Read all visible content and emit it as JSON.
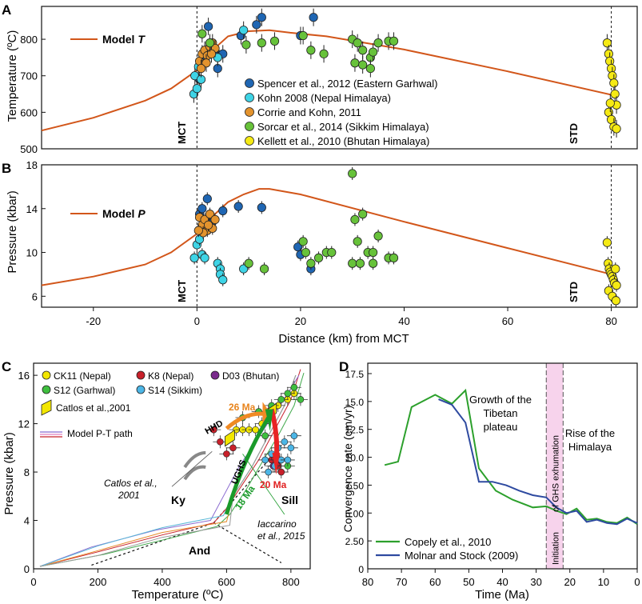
{
  "figure": {
    "panels": {
      "A": {
        "label": "A",
        "ylabel": "Temperature (ºC)",
        "model_label": "Model ",
        "model_label_var": "T",
        "left_marker": "MCT",
        "right_marker": "STD",
        "yticks": [
          "500",
          "600",
          "700",
          "800"
        ]
      },
      "B": {
        "label": "B",
        "ylabel": "Pressure (kbar)",
        "model_label": "Model ",
        "model_label_var": "P",
        "left_marker": "MCT",
        "right_marker": "STD",
        "yticks": [
          "6",
          "10",
          "14",
          "18"
        ],
        "xticks": [
          "-20",
          "0",
          "20",
          "40",
          "60",
          "80"
        ],
        "xlabel": "Distance (km) from MCT"
      },
      "C": {
        "label": "C",
        "ylabel": "Pressure (kbar)",
        "xlabel": "Temperature (ºC)",
        "xticks": [
          "0",
          "200",
          "400",
          "600",
          "800"
        ],
        "yticks": [
          "0",
          "4",
          "8",
          "12",
          "16"
        ],
        "legend": [
          {
            "label": "CK11 (Nepal)",
            "color": "#f2e600"
          },
          {
            "label": "K8 (Nepal)",
            "color": "#c8202a"
          },
          {
            "label": "D03 (Bhutan)",
            "color": "#7a2a8c"
          },
          {
            "label": "S12 (Garhwal)",
            "color": "#3fbf3f"
          },
          {
            "label": "S14 (Sikkim)",
            "color": "#4cb6e6"
          },
          {
            "label": "Catlos et al.,2001",
            "color": "#f2e600"
          },
          {
            "label": "Model P-T path",
            "color": "#c8202a"
          }
        ],
        "annotations": {
          "hhd": "HHD",
          "hhd_age": "26 Ma",
          "ughs": "UGHS",
          "ughs_age": "20 Ma",
          "green_age": "18 Ma",
          "catlos": "Catlos et al.,",
          "catlos_year": "2001",
          "iaccarino": "Iaccarino",
          "iaccarino_year": "et al., 2015",
          "ky": "Ky",
          "sill": "Sill",
          "and": "And"
        }
      },
      "D": {
        "label": "D",
        "ylabel": "Convergence rate (cm/yr)",
        "xlabel": "Time (Ma)",
        "xticks": [
          "80",
          "70",
          "60",
          "50",
          "40",
          "30",
          "20",
          "10",
          "0"
        ],
        "yticks": [
          "0",
          "2.50",
          "5.00",
          "7.50",
          "10.0",
          "12.5",
          "15.0",
          "17.5"
        ],
        "growth_text": [
          "Growth of the",
          "Tibetan",
          "plateau"
        ],
        "rise_text": [
          "Rise of the",
          "Himalaya"
        ],
        "band_text": [
          "Initiation",
          "of GHS exhumation"
        ],
        "legend": [
          {
            "label": "Copely et al., 2010",
            "color": "#2ca02c"
          },
          {
            "label": "Molnar and Stock (2009)",
            "color": "#2e4aa0"
          }
        ]
      }
    }
  },
  "chart_data": [
    {
      "panel": "A",
      "type": "scatter",
      "title": "",
      "xlabel": "",
      "ylabel": "Temperature (ºC)",
      "xlim": [
        -30,
        85
      ],
      "ylim": [
        500,
        890
      ],
      "model_curve": {
        "name": "Model T",
        "color": "#d2561a",
        "x": [
          -30,
          -20,
          -10,
          -5,
          0,
          3,
          6,
          10,
          14,
          18,
          25,
          40,
          60,
          80
        ],
        "y": [
          550,
          585,
          632,
          665,
          715,
          770,
          808,
          822,
          825,
          818,
          808,
          772,
          712,
          648
        ]
      },
      "series": [
        {
          "name": "Spencer et al., 2012 (Eastern Garhwal)",
          "color": "#1f66b3",
          "x": [
            0.5,
            1.2,
            2.2,
            3.5,
            5,
            8.5,
            11.5,
            12.5,
            20,
            22.5,
            4
          ],
          "y": [
            690,
            745,
            835,
            770,
            760,
            810,
            840,
            860,
            810,
            860,
            720
          ]
        },
        {
          "name": "Kohn 2008 (Nepal Himalaya)",
          "color": "#3ed4e6",
          "x": [
            -0.6,
            -0.4,
            0,
            0.3,
            0.8,
            4,
            9
          ],
          "y": [
            650,
            700,
            665,
            725,
            690,
            750,
            825
          ]
        },
        {
          "name": "Corrie and Kohn, 2011",
          "color": "#e3932d",
          "x": [
            0.5,
            1,
            1.5,
            2,
            2.5,
            3,
            3.5,
            1.8,
            2.8,
            0.8
          ],
          "y": [
            740,
            760,
            770,
            755,
            780,
            790,
            775,
            735,
            760,
            720
          ]
        },
        {
          "name": "Sorcar et al., 2014 (Sikkim Himalaya)",
          "color": "#67c23a",
          "x": [
            1,
            2.5,
            9.5,
            12.5,
            15,
            20.5,
            22,
            24.5,
            30,
            31,
            32,
            33.5,
            34,
            35,
            37,
            38,
            30.5,
            32,
            33.5
          ],
          "y": [
            815,
            790,
            785,
            790,
            795,
            810,
            770,
            760,
            800,
            790,
            770,
            750,
            765,
            790,
            795,
            795,
            735,
            730,
            720
          ]
        },
        {
          "name": "Kellett et al., 2010 (Bhutan Himalaya)",
          "color": "#f5ea14",
          "x": [
            79.2,
            79.5,
            79.7,
            80,
            80.2,
            80.5,
            80.7,
            81,
            79.5,
            80,
            80.5,
            81,
            79.8
          ],
          "y": [
            790,
            760,
            740,
            720,
            700,
            680,
            650,
            620,
            600,
            580,
            560,
            555,
            625
          ]
        }
      ]
    },
    {
      "panel": "B",
      "type": "scatter",
      "title": "",
      "xlabel": "Distance (km) from MCT",
      "ylabel": "Pressure (kbar)",
      "xlim": [
        -30,
        85
      ],
      "ylim": [
        5,
        18
      ],
      "model_curve": {
        "name": "Model P",
        "color": "#d2561a",
        "x": [
          -30,
          -20,
          -10,
          -5,
          0,
          3,
          6,
          9,
          12,
          14,
          20,
          40,
          60,
          80
        ],
        "y": [
          7,
          7.8,
          8.9,
          10,
          11.7,
          13.3,
          14.6,
          15.3,
          15.8,
          15.8,
          15.3,
          12.8,
          10.4,
          8
        ]
      },
      "series": [
        {
          "name": "Spencer et al., 2012 (Eastern Garhwal)",
          "color": "#1f66b3",
          "x": [
            0.5,
            1,
            2,
            3,
            5,
            8,
            12.5,
            19.5,
            20,
            22,
            1.5
          ],
          "y": [
            13.5,
            14,
            14.9,
            12.8,
            13.8,
            14.2,
            14.1,
            10.5,
            9.8,
            8.5,
            12
          ]
        },
        {
          "name": "Kohn 2008 (Nepal Himalaya)",
          "color": "#3ed4e6",
          "x": [
            -0.5,
            0,
            0.5,
            1,
            1.5,
            4,
            4.5,
            4.5,
            5,
            9
          ],
          "y": [
            9.5,
            10.7,
            11.2,
            9.8,
            9.5,
            9,
            8.5,
            8,
            7.5,
            8.5
          ]
        },
        {
          "name": "Corrie and Kohn, 2011",
          "color": "#e3932d",
          "x": [
            0.5,
            1,
            1.5,
            2,
            2.5,
            3,
            3.5,
            1.2,
            2.2,
            0.3
          ],
          "y": [
            13.2,
            12.5,
            13,
            12,
            13.5,
            12.2,
            13,
            11.8,
            12.5,
            12
          ]
        },
        {
          "name": "Sorcar et al., 2014 (Sikkim Himalaya)",
          "color": "#67c23a",
          "x": [
            10,
            13,
            20.5,
            21,
            22,
            23.5,
            25,
            26,
            30,
            30.5,
            31,
            32,
            33,
            34,
            35,
            37,
            38,
            30,
            31.5,
            34
          ],
          "y": [
            9,
            8.5,
            11,
            10,
            9,
            9.5,
            10,
            10,
            17.2,
            13,
            11,
            13.5,
            10,
            10,
            11.5,
            9.5,
            9.5,
            9,
            9,
            9
          ]
        },
        {
          "name": "Kellett et al., 2010 (Bhutan Himalaya)",
          "color": "#f5ea14",
          "x": [
            79.2,
            79.4,
            79.6,
            79.8,
            80,
            80.2,
            80.4,
            80.6,
            80.8,
            81,
            79.5,
            80.2,
            80.9
          ],
          "y": [
            10.9,
            9,
            8.5,
            8.2,
            8,
            7.8,
            7.5,
            7.2,
            8.5,
            7,
            6.5,
            6,
            5.6
          ]
        }
      ]
    },
    {
      "panel": "C",
      "type": "scatter",
      "title": "",
      "xlabel": "Temperature (ºC)",
      "ylabel": "Pressure (kbar)",
      "xlim": [
        0,
        860
      ],
      "ylim": [
        0,
        17
      ],
      "series": [
        {
          "name": "CK11 (Nepal)",
          "color": "#f2e600",
          "x": [
            630,
            650,
            670,
            690,
            710,
            730,
            760,
            790,
            810
          ],
          "y": [
            11.5,
            11.5,
            11.5,
            11.5,
            12,
            13,
            13.5,
            14,
            14.5
          ]
        },
        {
          "name": "K8 (Nepal)",
          "color": "#c8202a",
          "x": [
            560,
            580,
            600,
            620,
            740,
            760,
            770
          ],
          "y": [
            11.5,
            10.5,
            9.5,
            10,
            9,
            8.5,
            8
          ]
        },
        {
          "name": "D03 (Bhutan)",
          "color": "#7a2a8c",
          "x": [
            745,
            765
          ],
          "y": [
            8.5,
            9
          ]
        },
        {
          "name": "S12 (Garhwal)",
          "color": "#3fbf3f",
          "x": [
            650,
            700,
            740,
            770,
            790,
            810,
            830,
            790,
            720
          ],
          "y": [
            12.5,
            13,
            13.5,
            14,
            14.5,
            15,
            14,
            8.5,
            11
          ]
        },
        {
          "name": "S14 (Sikkim)",
          "color": "#4cb6e6",
          "x": [
            720,
            740,
            750,
            760,
            770,
            780,
            790,
            800,
            810,
            730
          ],
          "y": [
            9,
            9.5,
            8.5,
            10,
            9,
            10.5,
            9,
            10,
            11,
            8
          ]
        }
      ],
      "model_paths": [
        {
          "name": "Model P-T path",
          "color": "#c8202a",
          "x": [
            20,
            200,
            400,
            560,
            600,
            650,
            700,
            750,
            800,
            830
          ],
          "y": [
            0.2,
            1.4,
            2.8,
            3.8,
            5,
            7,
            9,
            11.5,
            14,
            16.5
          ]
        },
        {
          "name": "Model P-T path",
          "color": "#8a6ad0",
          "x": [
            20,
            180,
            380,
            550,
            590,
            640,
            690,
            740,
            790,
            825
          ],
          "y": [
            0.2,
            1.8,
            3.2,
            4,
            6,
            8.5,
            10.5,
            12.5,
            14.5,
            16
          ]
        },
        {
          "name": "Model P-T path",
          "color": "#3fa84a",
          "x": [
            20,
            220,
            420,
            570,
            610,
            660,
            710,
            760,
            810,
            840
          ],
          "y": [
            0.2,
            1.2,
            2.5,
            3.5,
            4.5,
            6.5,
            8.8,
            11,
            13.5,
            16.2
          ]
        }
      ]
    },
    {
      "panel": "D",
      "type": "line",
      "title": "",
      "xlabel": "Time (Ma)",
      "ylabel": "Convergence rate (cm/yr)",
      "xlim": [
        80,
        0
      ],
      "ylim": [
        0,
        17.5
      ],
      "band": {
        "from": 27,
        "to": 22
      },
      "series": [
        {
          "name": "Copely et al., 2010",
          "color": "#2ca02c",
          "x": [
            75,
            71,
            67,
            60,
            55,
            51,
            47,
            42,
            37,
            31,
            27,
            24,
            21,
            18,
            15,
            12,
            9,
            6,
            3,
            0
          ],
          "y": [
            9.3,
            9.6,
            14.5,
            15.6,
            14.8,
            16,
            9,
            7,
            6.2,
            5.5,
            5.6,
            5.2,
            4.9,
            5.4,
            4.4,
            4.5,
            4.2,
            4.1,
            4.6,
            4
          ]
        },
        {
          "name": "Molnar and Stock (2009)",
          "color": "#2e4aa0",
          "x": [
            59,
            55,
            51,
            47,
            43,
            39,
            35,
            31,
            27,
            24,
            21,
            18,
            15,
            12,
            9,
            6,
            3,
            0
          ],
          "y": [
            15.2,
            14.7,
            13.1,
            7.8,
            7.8,
            7.5,
            7,
            6.6,
            6.4,
            5.5,
            5,
            5.2,
            4.2,
            4.4,
            4.1,
            4,
            4.5,
            4.1
          ]
        }
      ]
    }
  ]
}
